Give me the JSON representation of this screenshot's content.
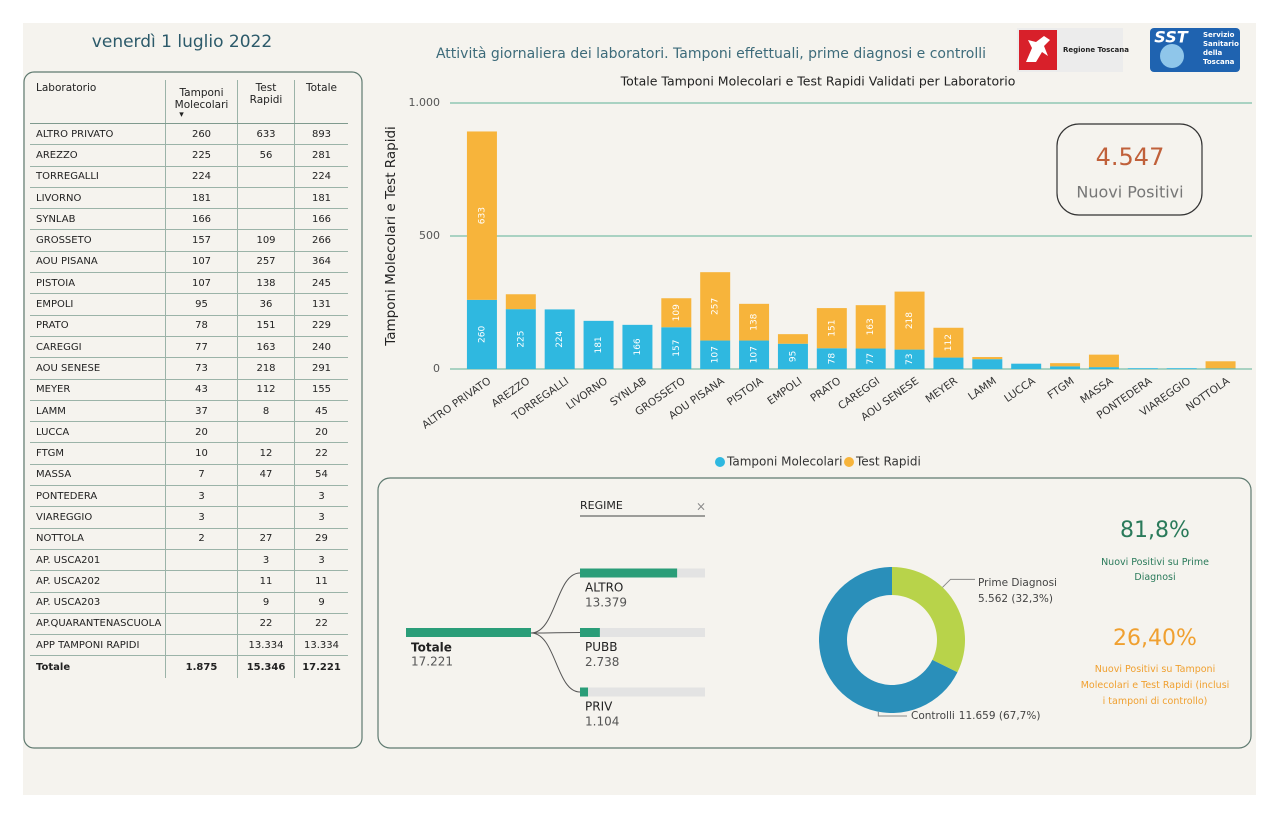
{
  "header": {
    "date": "venerdì 1 luglio 2022",
    "title": "Attività giornaliera dei laboratori. Tamponi effettuali, prime diagnosi e controlli",
    "logo_rt": "Regione Toscana",
    "logo_sst": "SST",
    "logo_sst_lines": [
      "Servizio",
      "Sanitario",
      "della",
      "Toscana"
    ]
  },
  "table": {
    "columns": [
      "Laboratorio",
      "Tamponi Molecolari",
      "Test Rapidi",
      "Totale"
    ],
    "rows": [
      [
        "ALTRO PRIVATO",
        "260",
        "633",
        "893"
      ],
      [
        "AREZZO",
        "225",
        "56",
        "281"
      ],
      [
        "TORREGALLI",
        "224",
        null,
        "224"
      ],
      [
        "LIVORNO",
        "181",
        null,
        "181"
      ],
      [
        "SYNLAB",
        "166",
        null,
        "166"
      ],
      [
        "GROSSETO",
        "157",
        "109",
        "266"
      ],
      [
        "AOU PISANA",
        "107",
        "257",
        "364"
      ],
      [
        "PISTOIA",
        "107",
        "138",
        "245"
      ],
      [
        "EMPOLI",
        "95",
        "36",
        "131"
      ],
      [
        "PRATO",
        "78",
        "151",
        "229"
      ],
      [
        "CAREGGI",
        "77",
        "163",
        "240"
      ],
      [
        "AOU SENESE",
        "73",
        "218",
        "291"
      ],
      [
        "MEYER",
        "43",
        "112",
        "155"
      ],
      [
        "LAMM",
        "37",
        "8",
        "45"
      ],
      [
        "LUCCA",
        "20",
        null,
        "20"
      ],
      [
        "FTGM",
        "10",
        "12",
        "22"
      ],
      [
        "MASSA",
        "7",
        "47",
        "54"
      ],
      [
        "PONTEDERA",
        "3",
        null,
        "3"
      ],
      [
        "VIAREGGIO",
        "3",
        null,
        "3"
      ],
      [
        "NOTTOLA",
        "2",
        "27",
        "29"
      ],
      [
        "AP. USCA201",
        null,
        "3",
        "3"
      ],
      [
        "AP. USCA202",
        null,
        "11",
        "11"
      ],
      [
        "AP. USCA203",
        null,
        "9",
        "9"
      ],
      [
        "AP.QUARANTENASCUOLA",
        null,
        "22",
        "22"
      ],
      [
        "APP TAMPONI RAPIDI",
        null,
        "13.334",
        "13.334"
      ]
    ],
    "total": [
      "Totale",
      "1.875",
      "15.346",
      "17.221"
    ]
  },
  "chart_data": [
    {
      "type": "bar",
      "stacked": true,
      "title": "Totale Tamponi Molecolari e Test Rapidi Validati per Laboratorio",
      "y_label": "Tamponi Molecolari e Test Rapidi",
      "categories": [
        "ALTRO PRIVATO",
        "AREZZO",
        "TORREGALLI",
        "LIVORNO",
        "SYNLAB",
        "GROSSETO",
        "AOU PISANA",
        "PISTOIA",
        "EMPOLI",
        "PRATO",
        "CAREGGI",
        "AOU SENESE",
        "MEYER",
        "LAMM",
        "LUCCA",
        "FTGM",
        "MASSA",
        "PONTEDERA",
        "VIAREGGIO",
        "NOTTOLA"
      ],
      "series": [
        {
          "name": "Tamponi Molecolari",
          "color": "#2fb8e0",
          "values": [
            260,
            225,
            224,
            181,
            166,
            157,
            107,
            107,
            95,
            78,
            77,
            73,
            43,
            37,
            20,
            10,
            7,
            3,
            3,
            2
          ]
        },
        {
          "name": "Test Rapidi",
          "color": "#f7b43b",
          "values": [
            633,
            56,
            null,
            null,
            null,
            109,
            257,
            138,
            36,
            151,
            163,
            218,
            112,
            8,
            null,
            12,
            47,
            null,
            null,
            27
          ]
        }
      ],
      "ylim": [
        0,
        1000
      ],
      "yticks": [
        0,
        500,
        {
          "value": 1000,
          "label": "1.000"
        }
      ],
      "grid": true,
      "legend": "bottom"
    },
    {
      "type": "donut",
      "categories": [
        "Prime Diagnosi",
        "Controlli"
      ],
      "values": [
        5562,
        11659
      ],
      "value_labels": [
        "5.562 (32,3%)",
        "11.659 (67,7%)"
      ],
      "colors": [
        "#b8d34a",
        "#2a8fba"
      ]
    }
  ],
  "decomposition": {
    "slicer": "REGIME",
    "root": {
      "label": "Totale",
      "value": 17221,
      "value_label": "17.221"
    },
    "children": [
      {
        "label": "ALTRO",
        "value": 13379,
        "value_label": "13.379"
      },
      {
        "label": "PUBB",
        "value": 2738,
        "value_label": "2.738"
      },
      {
        "label": "PRIV",
        "value": 1104,
        "value_label": "1.104"
      }
    ],
    "color": "#2a9d78"
  },
  "kpis": [
    {
      "value": "4.547",
      "label": "Nuovi Positivi"
    },
    {
      "value": "81,8%",
      "label": "Nuovi Positivi su Prime Diagnosi"
    },
    {
      "value": "26,40%",
      "label": "Nuovi Positivi su Tamponi Molecolari e Test Rapidi (inclusi i tamponi di controllo)"
    }
  ]
}
